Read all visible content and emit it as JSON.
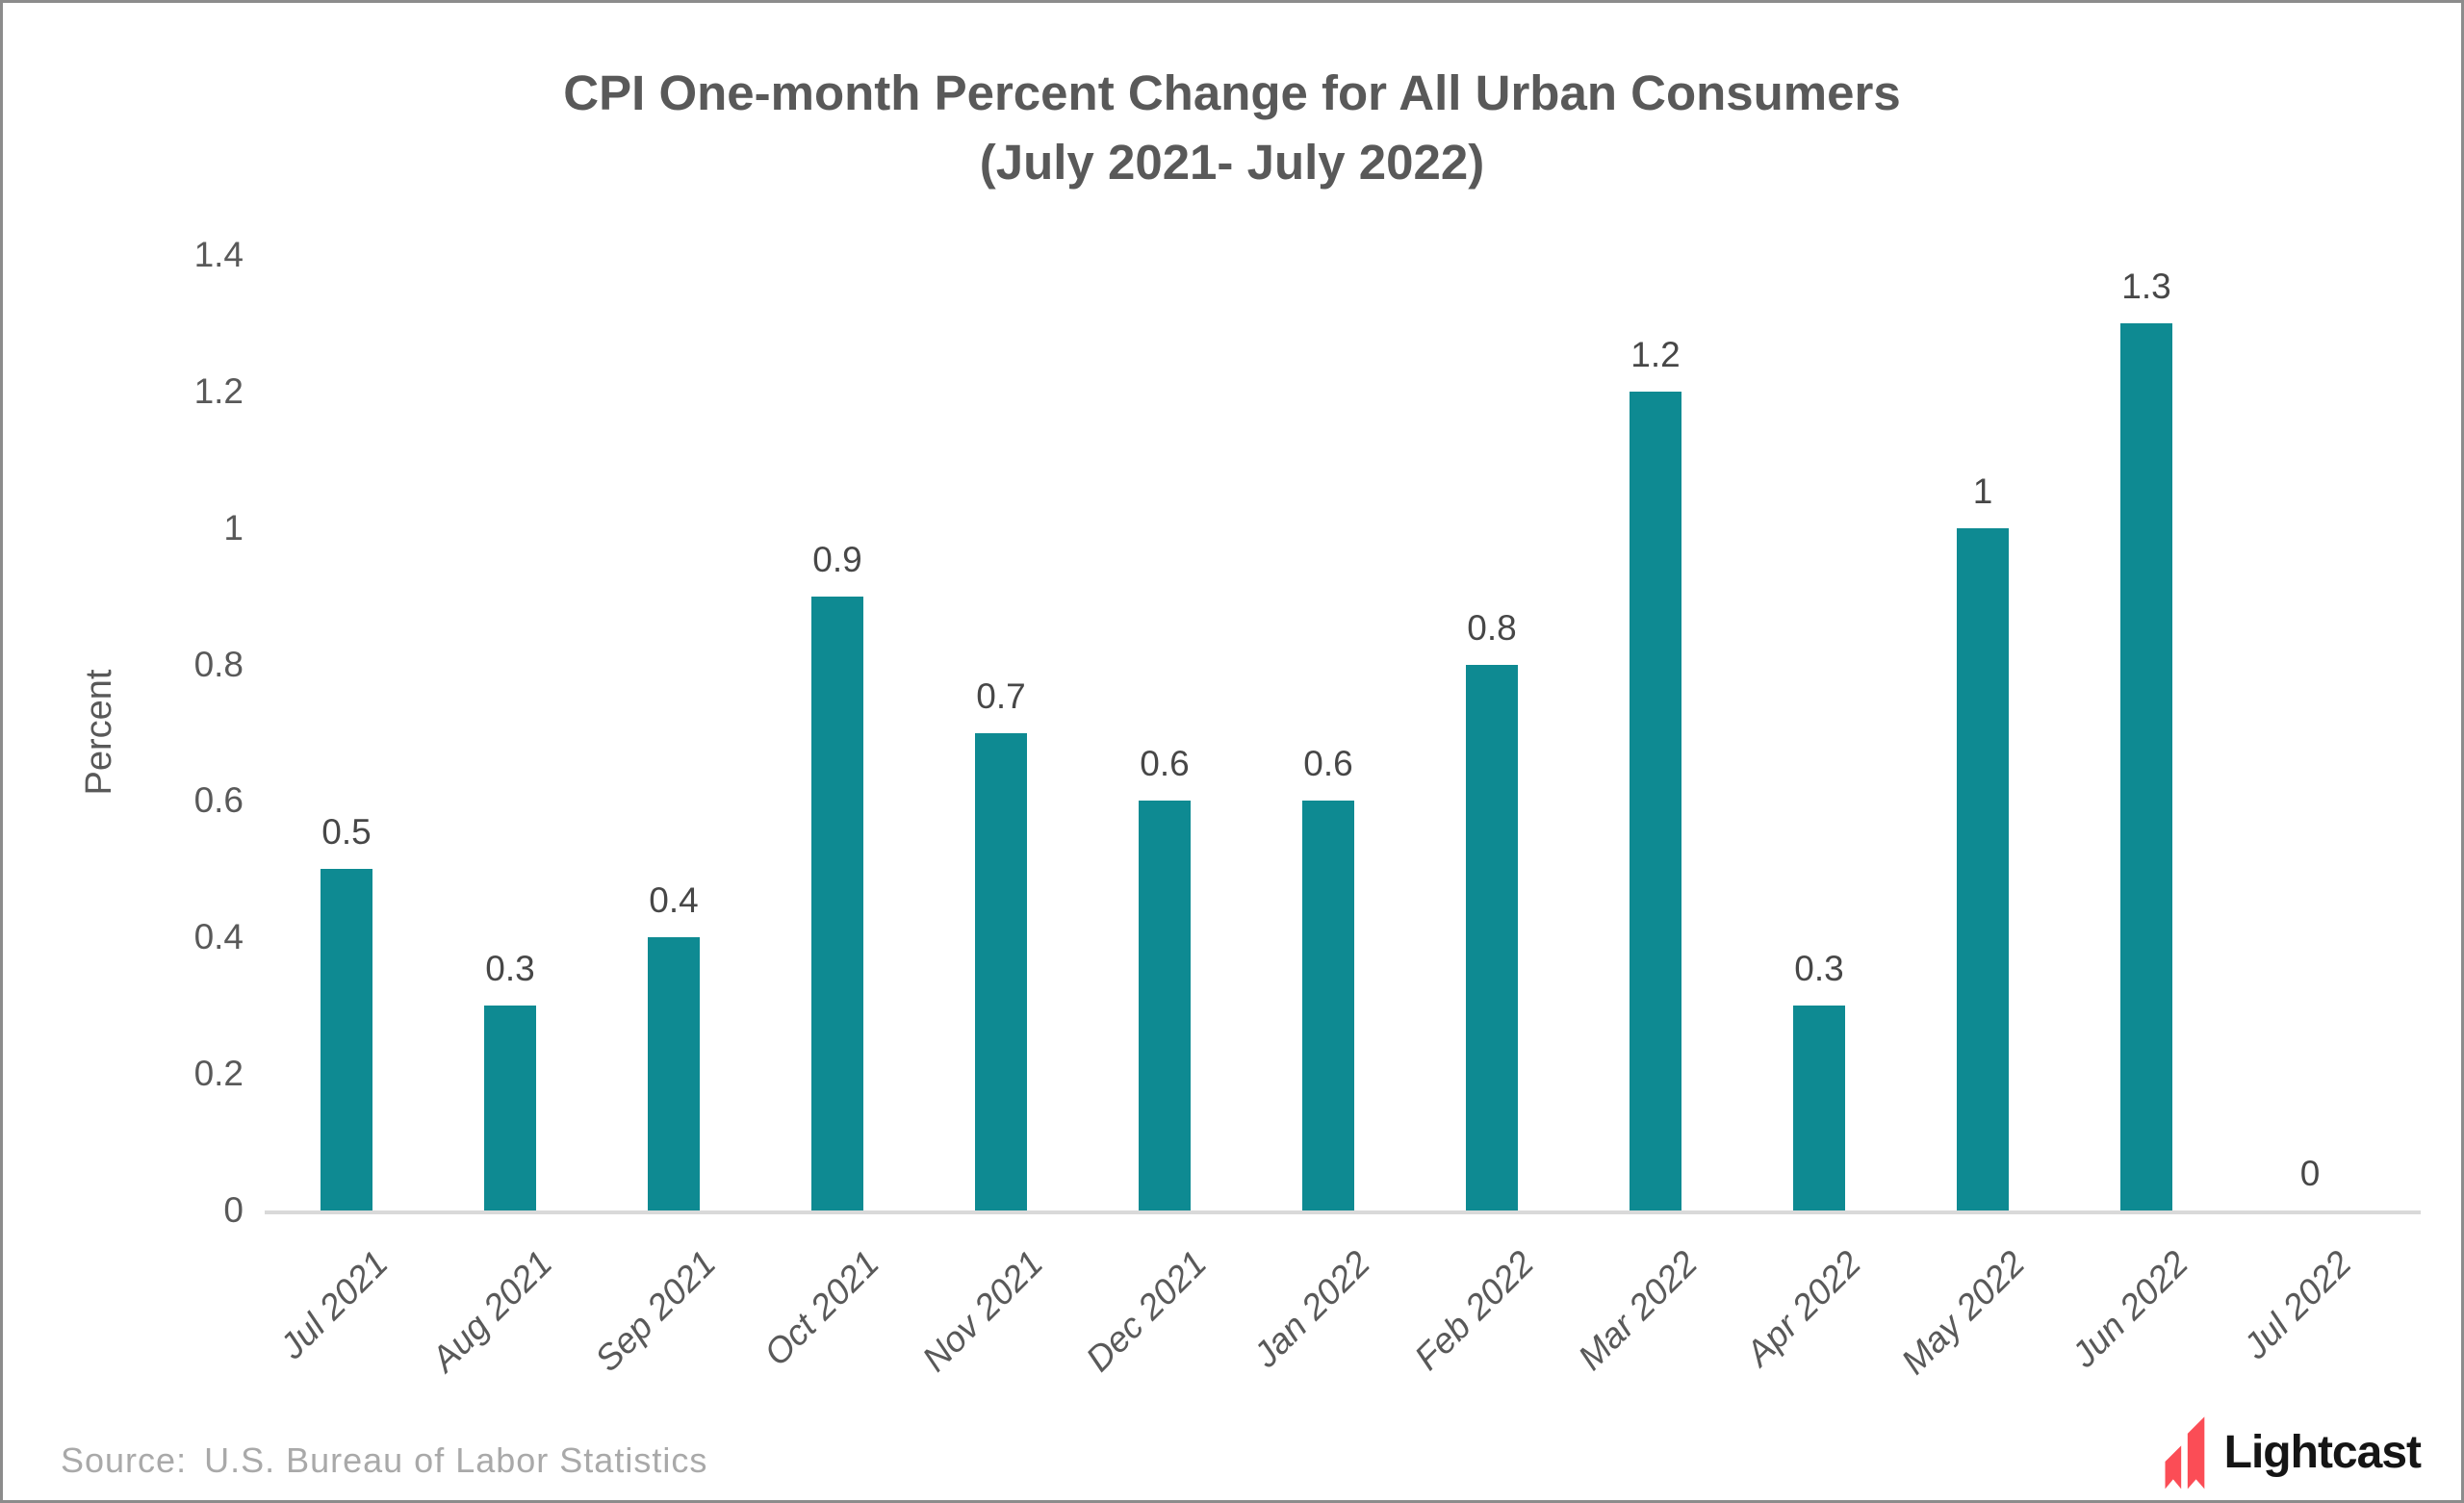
{
  "page": {
    "title_line1": "CPI One-month Percent Change for All Urban Consumers",
    "title_line2": "(July 2021- July 2022)"
  },
  "chart_data": {
    "type": "bar",
    "title": "CPI One-month Percent Change for All Urban Consumers (July 2021- July 2022)",
    "categories": [
      "Jul 2021",
      "Aug 2021",
      "Sep 2021",
      "Oct 2021",
      "Nov 2021",
      "Dec 2021",
      "Jan 2022",
      "Feb 2022",
      "Mar 2022",
      "Apr 2022",
      "May 2022",
      "Jun 2022",
      "Jul 2022"
    ],
    "values": [
      0.5,
      0.3,
      0.4,
      0.9,
      0.7,
      0.6,
      0.6,
      0.8,
      1.2,
      0.3,
      1,
      1.3,
      0
    ],
    "data_labels": [
      "0.5",
      "0.3",
      "0.4",
      "0.9",
      "0.7",
      "0.6",
      "0.6",
      "0.8",
      "1.2",
      "0.3",
      "1",
      "1.3",
      "0"
    ],
    "xlabel": "",
    "ylabel": "Percent",
    "ylim": [
      0,
      1.4
    ],
    "yticks": [
      "0",
      "0.2",
      "0.4",
      "0.6",
      "0.8",
      "1",
      "1.2",
      "1.4"
    ],
    "grid": false,
    "legend": "none",
    "bar_color": "#0E8A92"
  },
  "footer": {
    "source_prefix": "Source:",
    "source_text": "U.S. Bureau of Labor Statistics",
    "logo": {
      "text": "Lightcast",
      "icon": "lightcast-arrows-icon",
      "icon_color": "#FB4D56",
      "text_color": "#151515"
    }
  },
  "colors": {
    "background": "#FFFFFF",
    "frame_border": "#8C8C8C",
    "title": "#595959",
    "axis_text": "#595959",
    "data_label": "#474747",
    "axis_line": "#D9D9D9",
    "source_text": "#A9A9A9"
  }
}
